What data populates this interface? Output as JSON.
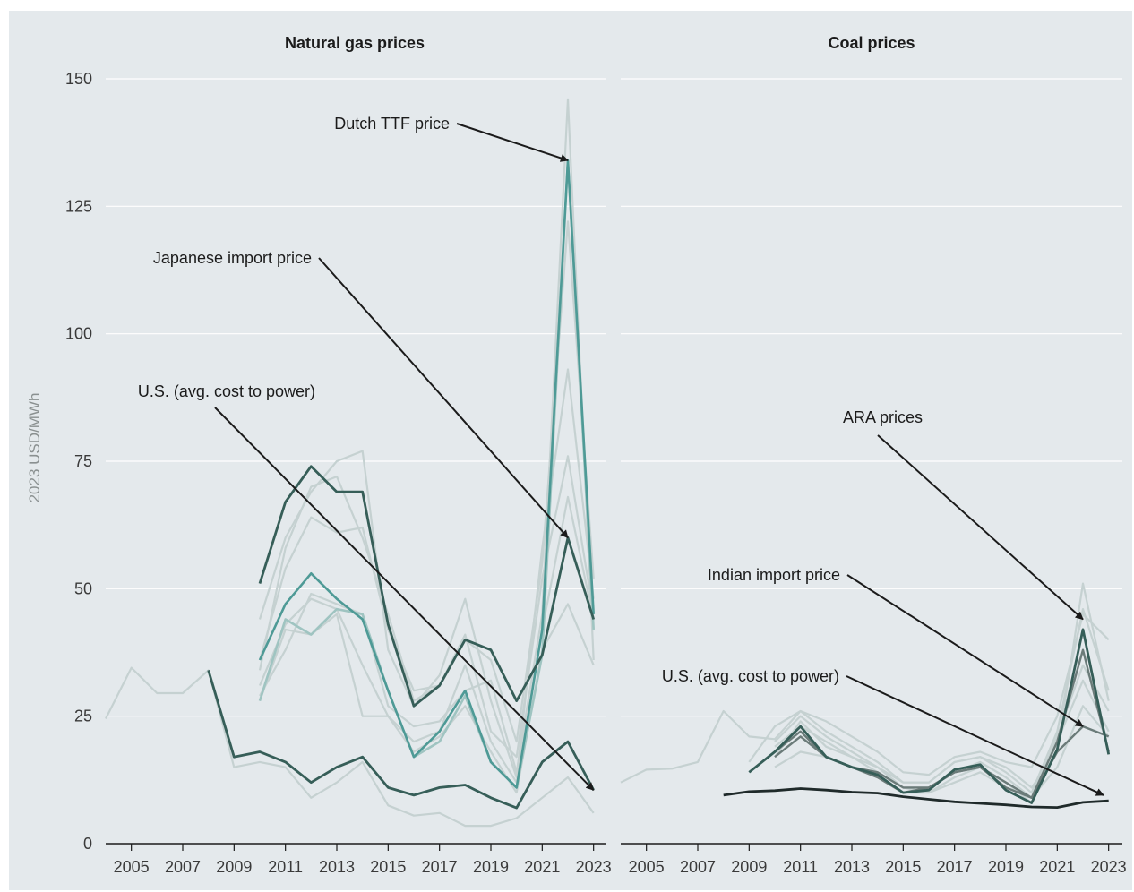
{
  "colors": {
    "background": "#e4e9ec",
    "grid": "#ffffff",
    "faint": "#c5d1d1",
    "light_gray": "#c0c6c6",
    "teal": "#4e9a96",
    "teal_light": "#9fc4c1",
    "dark_green": "#365e58",
    "gray": "#6b7b79",
    "near_black": "#1f2a2a",
    "axis": "#1b1b1b"
  },
  "chart_data": [
    {
      "type": "line",
      "title": "Natural gas prices",
      "ylabel": "2023 USD/MWh",
      "xlim": [
        2004,
        2023.5
      ],
      "ylim": [
        0,
        150
      ],
      "xticks": [
        "2005",
        "2007",
        "2009",
        "2011",
        "2013",
        "2015",
        "2017",
        "2019",
        "2021",
        "2023"
      ],
      "yticks": [
        "0",
        "25",
        "50",
        "75",
        "100",
        "125",
        "150"
      ],
      "grid": true,
      "series": [
        {
          "x": [
            2004,
            2005,
            2006,
            2007,
            2008,
            2009,
            2010,
            2011,
            2012,
            2013,
            2014,
            2015,
            2016,
            2017,
            2018,
            2019,
            2020,
            2021,
            2022,
            2023
          ],
          "y": [
            24.5,
            34.5,
            29.5,
            29.5,
            34,
            15,
            16,
            15,
            9,
            12,
            16,
            7.5,
            5.5,
            6,
            3.5,
            3.5,
            5,
            9,
            13,
            6
          ],
          "style": "faint"
        },
        {
          "x": [
            2010,
            2011,
            2012,
            2013,
            2014,
            2015,
            2016,
            2017,
            2018,
            2019,
            2020,
            2021,
            2022,
            2023
          ],
          "y": [
            29,
            38,
            49,
            47,
            45,
            27,
            23,
            24,
            30,
            32,
            14,
            45,
            146,
            36
          ],
          "style": "faint"
        },
        {
          "x": [
            2010,
            2011,
            2012,
            2013,
            2014,
            2015,
            2016,
            2017,
            2018,
            2019,
            2020,
            2021,
            2022,
            2023
          ],
          "y": [
            34,
            58,
            70,
            72,
            60,
            45,
            28,
            31,
            40,
            36,
            20,
            55,
            122,
            52
          ],
          "style": "faint"
        },
        {
          "x": [
            2010,
            2011,
            2012,
            2013,
            2014,
            2015,
            2016,
            2017,
            2018,
            2019,
            2020,
            2021,
            2022,
            2023
          ],
          "y": [
            44,
            60,
            69,
            75,
            77,
            38,
            27,
            33,
            48,
            28,
            13,
            58,
            93,
            48
          ],
          "style": "faint"
        },
        {
          "x": [
            2010,
            2011,
            2012,
            2013,
            2014,
            2015,
            2016,
            2017,
            2018,
            2019,
            2020,
            2021,
            2022,
            2023
          ],
          "y": [
            36,
            54,
            64,
            61,
            62,
            42,
            30,
            31,
            41,
            22,
            17,
            52,
            76,
            45
          ],
          "style": "faint"
        },
        {
          "x": [
            2010,
            2011,
            2012,
            2013,
            2014,
            2015,
            2016,
            2017,
            2018,
            2019,
            2020,
            2021,
            2022,
            2023
          ],
          "y": [
            28,
            42,
            41,
            45,
            25,
            25,
            20,
            22,
            35,
            20,
            12,
            42,
            68,
            44
          ],
          "style": "faint"
        },
        {
          "x": [
            2010,
            2011,
            2012,
            2013,
            2014,
            2015,
            2016,
            2017,
            2018,
            2019,
            2020,
            2021,
            2022,
            2023
          ],
          "y": [
            31,
            43,
            48,
            46,
            35,
            25,
            18,
            21,
            27,
            18,
            10,
            38,
            47,
            35
          ],
          "style": "faint"
        },
        {
          "x": [
            2010,
            2011,
            2012,
            2013,
            2014,
            2015,
            2016,
            2017,
            2018,
            2019,
            2020,
            2021,
            2022,
            2023
          ],
          "y": [
            28,
            44,
            41,
            46,
            45,
            30,
            17,
            20,
            29,
            16,
            11,
            37,
            134,
            42
          ],
          "style": "teal-light"
        },
        {
          "x": [
            2010,
            2011,
            2012,
            2013,
            2014,
            2015,
            2016,
            2017,
            2018,
            2019,
            2020,
            2021,
            2022,
            2023
          ],
          "y": [
            36,
            47,
            53,
            48,
            44,
            30,
            17,
            22,
            30,
            16,
            11,
            42,
            134,
            45
          ],
          "style": "teal"
        },
        {
          "x": [
            2010,
            2011,
            2012,
            2013,
            2014,
            2015,
            2016,
            2017,
            2018,
            2019,
            2020,
            2021,
            2022,
            2023
          ],
          "y": [
            51,
            67,
            74,
            69,
            69,
            43,
            27,
            31,
            40,
            38,
            28,
            37,
            60,
            44
          ],
          "style": "dark"
        },
        {
          "x": [
            2008,
            2009,
            2010,
            2011,
            2012,
            2013,
            2014,
            2015,
            2016,
            2017,
            2018,
            2019,
            2020,
            2021,
            2022,
            2023
          ],
          "y": [
            34,
            17,
            18,
            16,
            12,
            15,
            17,
            11,
            9.5,
            11,
            11.5,
            9,
            7,
            16,
            20,
            10.5
          ],
          "style": "dark"
        }
      ],
      "annotations": [
        {
          "text": "Dutch TTF price",
          "target": [
            2022,
            134
          ]
        },
        {
          "text": "Japanese import price",
          "target": [
            2022,
            60
          ]
        },
        {
          "text": "U.S. (avg. cost to power)",
          "target": [
            2023,
            10.5
          ]
        }
      ]
    },
    {
      "type": "line",
      "title": "Coal prices",
      "xlim": [
        2004,
        2023.5
      ],
      "ylim": [
        0,
        150
      ],
      "xticks": [
        "2005",
        "2007",
        "2009",
        "2011",
        "2013",
        "2015",
        "2017",
        "2019",
        "2021",
        "2023"
      ],
      "grid": true,
      "series": [
        {
          "x": [
            2004,
            2005,
            2006,
            2007,
            2008,
            2009,
            2010,
            2011,
            2012,
            2013,
            2014,
            2015,
            2016,
            2017,
            2018,
            2019,
            2020,
            2021,
            2022,
            2023
          ],
          "y": [
            12,
            14.5,
            14.7,
            16,
            26,
            21,
            20.5,
            26,
            24,
            21,
            18,
            14,
            13.5,
            17,
            18,
            16,
            15,
            25,
            45,
            40
          ],
          "style": "faint"
        },
        {
          "x": [
            2009,
            2010,
            2011,
            2012,
            2013,
            2014,
            2015,
            2016,
            2017,
            2018,
            2019,
            2020,
            2021,
            2022,
            2023
          ],
          "y": [
            16,
            23,
            26,
            22,
            19,
            16,
            12,
            12,
            16,
            17,
            15,
            11,
            18,
            51,
            28
          ],
          "style": "faint"
        },
        {
          "x": [
            2010,
            2011,
            2012,
            2013,
            2014,
            2015,
            2016,
            2017,
            2018,
            2019,
            2020,
            2021,
            2022,
            2023
          ],
          "y": [
            20,
            25,
            21,
            18,
            15,
            12,
            12,
            16,
            17,
            14,
            10,
            22,
            46,
            30
          ],
          "style": "faint"
        },
        {
          "x": [
            2010,
            2011,
            2012,
            2013,
            2014,
            2015,
            2016,
            2017,
            2018,
            2019,
            2020,
            2021,
            2022,
            2023
          ],
          "y": [
            17,
            24,
            19,
            17,
            15,
            11,
            11,
            14,
            16,
            13,
            9,
            21,
            35,
            26
          ],
          "style": "faint"
        },
        {
          "x": [
            2010,
            2011,
            2012,
            2013,
            2014,
            2015,
            2016,
            2017,
            2018,
            2019,
            2020,
            2021,
            2022,
            2023
          ],
          "y": [
            19,
            23,
            20,
            17,
            14,
            11,
            10,
            13,
            15,
            12,
            8,
            20,
            32,
            22
          ],
          "style": "faint"
        },
        {
          "x": [
            2010,
            2011,
            2012,
            2013,
            2014,
            2015,
            2016,
            2017,
            2018,
            2019,
            2020,
            2021,
            2022,
            2023
          ],
          "y": [
            15,
            18,
            17,
            15,
            13,
            10,
            10,
            12,
            14,
            11,
            9,
            15,
            27,
            21
          ],
          "style": "faint"
        },
        {
          "x": [
            2010,
            2011,
            2012,
            2013,
            2014,
            2015,
            2016,
            2017,
            2018,
            2019,
            2020,
            2021,
            2022,
            2023
          ],
          "y": [
            18,
            22,
            17,
            15,
            14,
            11,
            11,
            14,
            15,
            11,
            9,
            20,
            38,
            18
          ],
          "style": "gray"
        },
        {
          "x": [
            2010,
            2011,
            2012,
            2013,
            2014,
            2015,
            2016,
            2017,
            2018,
            2019,
            2020,
            2021,
            2022,
            2023
          ],
          "y": [
            17,
            21,
            17,
            15,
            13,
            10,
            11,
            14,
            15,
            12,
            9,
            18,
            23,
            21
          ],
          "style": "gray"
        },
        {
          "x": [
            2009,
            2010,
            2011,
            2012,
            2013,
            2014,
            2015,
            2016,
            2017,
            2018,
            2019,
            2020,
            2021,
            2022,
            2023
          ],
          "y": [
            14,
            18,
            23,
            17,
            15,
            13.5,
            10,
            10.5,
            14.5,
            15.5,
            10.5,
            8,
            18.5,
            42,
            17.5
          ],
          "style": "dark"
        },
        {
          "x": [
            2008,
            2009,
            2010,
            2011,
            2012,
            2013,
            2014,
            2015,
            2016,
            2017,
            2018,
            2019,
            2020,
            2021,
            2022,
            2023
          ],
          "y": [
            9.5,
            10.2,
            10.4,
            10.8,
            10.5,
            10.1,
            9.9,
            9.2,
            8.7,
            8.2,
            7.9,
            7.6,
            7.2,
            7.1,
            8.1,
            8.4
          ],
          "style": "black"
        }
      ],
      "annotations": [
        {
          "text": "ARA prices",
          "target": [
            2022,
            44
          ]
        },
        {
          "text": "Indian import price",
          "target": [
            2022,
            23
          ]
        },
        {
          "text": "U.S. (avg. cost to power)",
          "target": [
            2022.8,
            9.5
          ]
        }
      ]
    }
  ]
}
